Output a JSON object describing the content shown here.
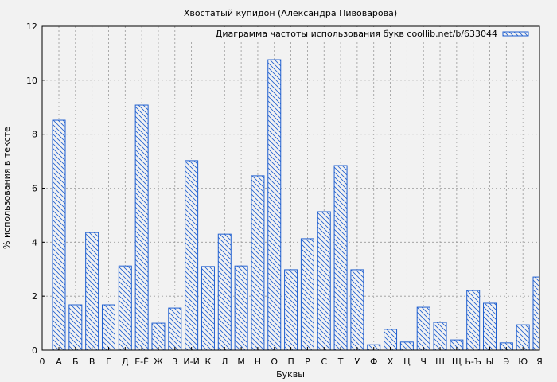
{
  "chart_data": {
    "type": "bar",
    "title": "Хвостатый купидон (Александра Пивоварова)",
    "xlabel": "Буквы",
    "ylabel": "% использования в тексте",
    "legend": {
      "label": "Диаграмма частоты использования букв coollib.net/b/633044",
      "placement": "top-right"
    },
    "origin_label": "0",
    "categories": [
      "А",
      "Б",
      "В",
      "Г",
      "Д",
      "Е-Ё",
      "Ж",
      "З",
      "И-Й",
      "К",
      "Л",
      "М",
      "Н",
      "О",
      "П",
      "Р",
      "С",
      "Т",
      "У",
      "Ф",
      "Х",
      "Ц",
      "Ч",
      "Ш",
      "Щ",
      "Ь-Ъ",
      "Ы",
      "Э",
      "Ю",
      "Я"
    ],
    "values": [
      8.52,
      1.68,
      4.36,
      1.68,
      3.12,
      9.08,
      1.0,
      1.56,
      7.02,
      3.1,
      4.3,
      3.12,
      6.46,
      10.76,
      2.98,
      4.13,
      5.13,
      6.84,
      2.98,
      0.2,
      0.77,
      0.3,
      1.59,
      1.03,
      0.38,
      2.21,
      1.74,
      0.27,
      0.94,
      2.71
    ],
    "ylim": [
      0,
      12
    ],
    "yticks": [
      0,
      2,
      4,
      6,
      8,
      10,
      12
    ],
    "grid": true,
    "bar_color": "#1f5fd0",
    "hatch": "diagonal"
  }
}
